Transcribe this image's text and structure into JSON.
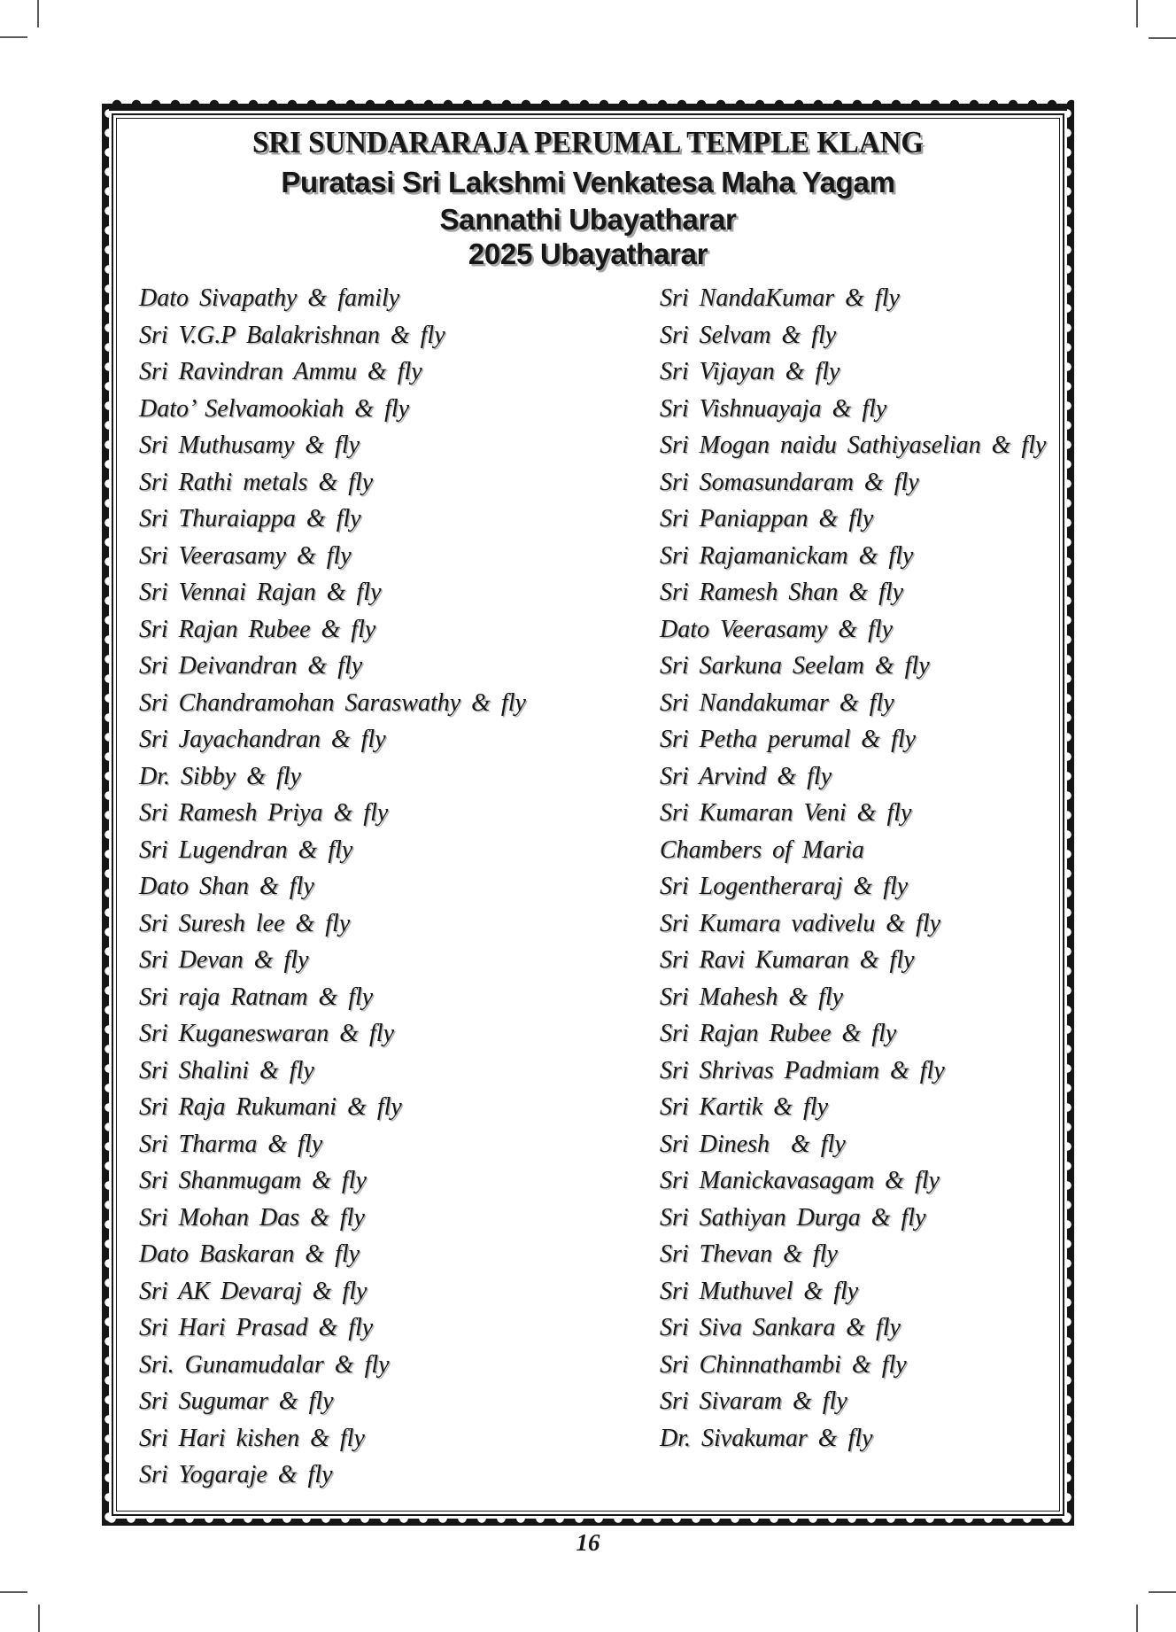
{
  "header": {
    "title": "SRI SUNDARARAJA PERUMAL TEMPLE KLANG",
    "subtitle1": "Puratasi Sri Lakshmi Venkatesa Maha Yagam",
    "subtitle2": "Sannathi Ubayatharar",
    "subtitle3": "2025 Ubayatharar"
  },
  "columns": {
    "left": [
      "Dato Sivapathy & family",
      "Sri V.G.P Balakrishnan & fly",
      "Sri Ravindran Ammu & fly",
      "Dato’ Selvamookiah & fly",
      "Sri Muthusamy & fly",
      "Sri Rathi metals & fly",
      "Sri Thuraiappa & fly",
      "Sri Veerasamy & fly",
      "Sri Vennai Rajan & fly",
      "Sri Rajan Rubee & fly",
      "Sri Deivandran & fly",
      "Sri Chandramohan Saraswathy & fly",
      "Sri Jayachandran & fly",
      "Dr. Sibby & fly",
      "Sri Ramesh Priya & fly",
      "Sri Lugendran & fly",
      "Dato Shan & fly",
      "Sri Suresh lee & fly",
      "Sri Devan & fly",
      "Sri raja Ratnam & fly",
      "Sri Kuganeswaran & fly",
      "Sri Shalini & fly",
      "Sri Raja Rukumani & fly",
      "Sri Tharma & fly",
      "Sri Shanmugam & fly",
      "Sri Mohan Das & fly",
      "Dato Baskaran & fly",
      "Sri AK Devaraj & fly",
      "Sri Hari Prasad & fly",
      "Sri. Gunamudalar & fly",
      "Sri Sugumar & fly",
      "Sri Hari kishen & fly",
      "Sri Yogaraje & fly"
    ],
    "right": [
      "Sri NandaKumar & fly",
      "Sri Selvam & fly",
      "Sri Vijayan & fly",
      "Sri Vishnuayaja & fly",
      "Sri Mogan naidu Sathiyaselian & fly",
      "Sri Somasundaram & fly",
      "Sri Paniappan & fly",
      "Sri Rajamanickam & fly",
      "Sri Ramesh Shan & fly",
      "Dato Veerasamy & fly",
      "Sri Sarkuna Seelam & fly",
      "Sri Nandakumar & fly",
      "Sri Petha perumal & fly",
      "Sri Arvind & fly",
      "Sri Kumaran Veni & fly",
      "Chambers of Maria",
      "Sri Logentheraraj & fly",
      "Sri Kumara vadivelu & fly",
      "Sri Ravi Kumaran & fly",
      "Sri Mahesh & fly",
      "Sri Rajan Rubee & fly",
      "Sri Shrivas Padmiam & fly",
      "Sri Kartik & fly",
      "Sri Dinesh  & fly",
      "Sri Manickavasagam & fly",
      "Sri Sathiyan Durga & fly",
      "Sri Thevan & fly",
      "Sri Muthuvel & fly",
      "Sri Siva Sankara & fly",
      "Sri Chinnathambi & fly",
      "Sri Sivaram & fly",
      "Dr. Sivakumar & fly"
    ]
  },
  "footer": {
    "page_number": "16"
  },
  "colors": {
    "ink": "#161616",
    "shadow": "#a5a5a5",
    "mark_gray": "#5a5a5a"
  }
}
